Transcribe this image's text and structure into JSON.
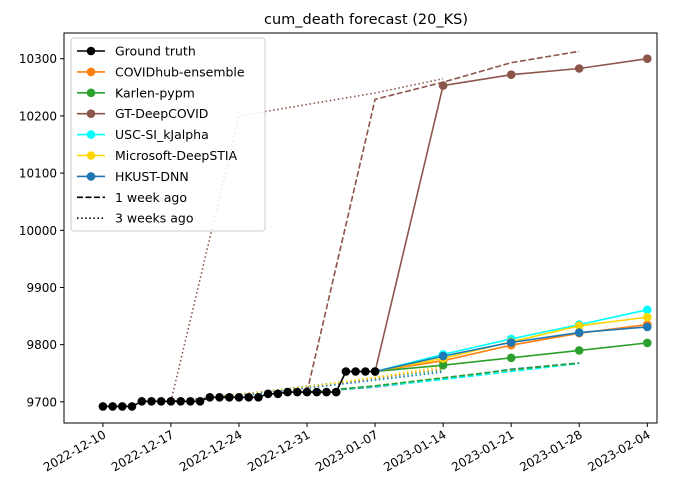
{
  "chart_data": {
    "type": "line",
    "title": "cum_death forecast (20_KS)",
    "xlabel": "",
    "ylabel": "",
    "x_range": [
      "2022-12-06",
      "2023-02-05"
    ],
    "ylim": [
      9663,
      10345
    ],
    "x_ticks": [
      "2022-12-10",
      "2022-12-17",
      "2022-12-24",
      "2022-12-31",
      "2023-01-07",
      "2023-01-14",
      "2023-01-21",
      "2023-01-28",
      "2023-02-04"
    ],
    "y_ticks": [
      9700,
      9800,
      9900,
      10000,
      10100,
      10200,
      10300
    ],
    "grid": false,
    "legend_position": "top-left",
    "legend": [
      {
        "label": "Ground truth",
        "color": "#000000",
        "style": "solid-marker"
      },
      {
        "label": "COVIDhub-ensemble",
        "color": "#ff7f0e",
        "style": "solid-marker"
      },
      {
        "label": "Karlen-pypm",
        "color": "#2ca02c",
        "style": "solid-marker"
      },
      {
        "label": "GT-DeepCOVID",
        "color": "#8c564b",
        "style": "solid-marker"
      },
      {
        "label": "USC-SI_kJalpha",
        "color": "#00ffff",
        "style": "solid-marker"
      },
      {
        "label": "Microsoft-DeepSTIA",
        "color": "#ffd700",
        "style": "solid-marker"
      },
      {
        "label": "HKUST-DNN",
        "color": "#1f77b4",
        "style": "solid-marker"
      },
      {
        "label": "1 week ago",
        "color": "#000000",
        "style": "dashed"
      },
      {
        "label": "3 weeks ago",
        "color": "#000000",
        "style": "dotted"
      }
    ],
    "ground_truth": {
      "name": "Ground truth",
      "color": "#000000",
      "x": [
        "2022-12-10",
        "2022-12-11",
        "2022-12-12",
        "2022-12-13",
        "2022-12-14",
        "2022-12-15",
        "2022-12-16",
        "2022-12-17",
        "2022-12-18",
        "2022-12-19",
        "2022-12-20",
        "2022-12-21",
        "2022-12-22",
        "2022-12-23",
        "2022-12-24",
        "2022-12-25",
        "2022-12-26",
        "2022-12-27",
        "2022-12-28",
        "2022-12-29",
        "2022-12-30",
        "2022-12-31",
        "2023-01-01",
        "2023-01-02",
        "2023-01-03",
        "2023-01-04",
        "2023-01-05",
        "2023-01-06",
        "2023-01-07"
      ],
      "y": [
        9692,
        9692,
        9692,
        9692,
        9701,
        9701,
        9701,
        9701,
        9701,
        9701,
        9701,
        9708,
        9708,
        9708,
        9708,
        9708,
        9708,
        9714,
        9714,
        9717,
        9717,
        9717,
        9717,
        9717,
        9717,
        9753,
        9753,
        9753,
        9753
      ]
    },
    "forecasts_current": [
      {
        "name": "COVIDhub-ensemble",
        "color": "#ff7f0e",
        "x": [
          "2023-01-07",
          "2023-01-14",
          "2023-01-21",
          "2023-01-28",
          "2023-02-04"
        ],
        "y": [
          9753,
          9772,
          9799,
          9820,
          9835
        ]
      },
      {
        "name": "Karlen-pypm",
        "color": "#2ca02c",
        "x": [
          "2023-01-07",
          "2023-01-14",
          "2023-01-21",
          "2023-01-28",
          "2023-02-04"
        ],
        "y": [
          9753,
          9764,
          9777,
          9790,
          9803
        ]
      },
      {
        "name": "GT-DeepCOVID",
        "color": "#8c564b",
        "x": [
          "2023-01-07",
          "2023-01-14",
          "2023-01-21",
          "2023-01-28",
          "2023-02-04"
        ],
        "y": [
          9753,
          10253,
          10272,
          10283,
          10300
        ]
      },
      {
        "name": "USC-SI_kJalpha",
        "color": "#00ffff",
        "x": [
          "2023-01-07",
          "2023-01-14",
          "2023-01-21",
          "2023-01-28",
          "2023-02-04"
        ],
        "y": [
          9753,
          9783,
          9810,
          9835,
          9861
        ]
      },
      {
        "name": "Microsoft-DeepSTIA",
        "color": "#ffd700",
        "x": [
          "2023-01-07",
          "2023-01-14",
          "2023-01-21",
          "2023-01-28",
          "2023-02-04"
        ],
        "y": [
          9753,
          9776,
          9805,
          9833,
          9848
        ]
      },
      {
        "name": "HKUST-DNN",
        "color": "#1f77b4",
        "x": [
          "2023-01-07",
          "2023-01-14",
          "2023-01-21",
          "2023-01-28",
          "2023-02-04"
        ],
        "y": [
          9753,
          9780,
          9804,
          9821,
          9831
        ]
      }
    ],
    "forecasts_1_week_ago": [
      {
        "name": "GT-DeepCOVID",
        "color": "#8c564b",
        "x": [
          "2022-12-31",
          "2023-01-07",
          "2023-01-14",
          "2023-01-21",
          "2023-01-28"
        ],
        "y": [
          9717,
          10229,
          10259,
          10293,
          10313
        ]
      },
      {
        "name": "HKUST-DNN",
        "color": "#1f77b4",
        "x": [
          "2022-12-31",
          "2023-01-07",
          "2023-01-14",
          "2023-01-21",
          "2023-01-28"
        ],
        "y": [
          9717,
          9726,
          9740,
          9757,
          9768
        ]
      },
      {
        "name": "USC-SI_kJalpha",
        "color": "#00ffff",
        "x": [
          "2022-12-31",
          "2023-01-07",
          "2023-01-14",
          "2023-01-21",
          "2023-01-28"
        ],
        "y": [
          9717,
          9727,
          9739,
          9753,
          9767
        ]
      },
      {
        "name": "Karlen-pypm",
        "color": "#2ca02c",
        "x": [
          "2022-12-31",
          "2023-01-07",
          "2023-01-14",
          "2023-01-21",
          "2023-01-28"
        ],
        "y": [
          9717,
          9728,
          9742,
          9756,
          9768
        ]
      }
    ],
    "forecasts_3_weeks_ago": [
      {
        "name": "GT-DeepCOVID",
        "color": "#8c564b",
        "x": [
          "2022-12-17",
          "2022-12-24",
          "2022-12-31",
          "2023-01-07",
          "2023-01-14"
        ],
        "y": [
          9701,
          10200,
          10220,
          10240,
          10265
        ]
      },
      {
        "name": "Karlen-pypm",
        "color": "#2ca02c",
        "x": [
          "2022-12-17",
          "2022-12-24",
          "2022-12-31",
          "2023-01-07",
          "2023-01-14"
        ],
        "y": [
          9701,
          9713,
          9727,
          9742,
          9755
        ]
      },
      {
        "name": "USC-SI_kJalpha",
        "color": "#00ffff",
        "x": [
          "2022-12-17",
          "2022-12-24",
          "2022-12-31",
          "2023-01-07",
          "2023-01-14"
        ],
        "y": [
          9701,
          9712,
          9725,
          9739,
          9757
        ]
      },
      {
        "name": "COVIDhub-ensemble",
        "color": "#ff7f0e",
        "x": [
          "2022-12-17",
          "2022-12-24",
          "2022-12-31",
          "2023-01-07",
          "2023-01-14"
        ],
        "y": [
          9701,
          9713,
          9726,
          9741,
          9758
        ]
      },
      {
        "name": "Microsoft-DeepSTIA",
        "color": "#ffd700",
        "x": [
          "2022-12-17",
          "2022-12-24",
          "2022-12-31",
          "2023-01-07",
          "2023-01-14"
        ],
        "y": [
          9701,
          9712,
          9726,
          9743,
          9762
        ]
      },
      {
        "name": "HKUST-DNN",
        "color": "#1f77b4",
        "x": [
          "2022-12-17",
          "2022-12-24",
          "2022-12-31",
          "2023-01-07",
          "2023-01-14"
        ],
        "y": [
          9701,
          9711,
          9724,
          9738,
          9752
        ]
      }
    ]
  }
}
